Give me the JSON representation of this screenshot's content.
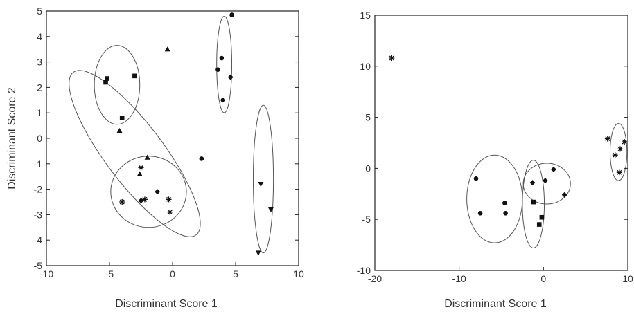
{
  "chart_data": [
    {
      "type": "scatter",
      "xlabel": "Discriminant Score 1",
      "ylabel": "Discriminant Score 2",
      "xlim": [
        -10,
        10
      ],
      "ylim": [
        -5,
        5
      ],
      "xticks": [
        "-10",
        "-5",
        "0",
        "5",
        "10"
      ],
      "yticks": [
        "5",
        "4",
        "3",
        "2",
        "1",
        "0",
        "-1",
        "-2",
        "-3",
        "-4",
        "-5"
      ],
      "grid": false,
      "series": [
        {
          "marker": "square",
          "points": [
            [
              -5.3,
              2.2
            ],
            [
              -5.2,
              2.35
            ],
            [
              -3.0,
              2.45
            ],
            [
              -4.0,
              0.8
            ]
          ]
        },
        {
          "marker": "circle",
          "points": [
            [
              4.7,
              4.85
            ],
            [
              3.9,
              3.15
            ],
            [
              3.6,
              2.7
            ],
            [
              4.0,
              1.5
            ],
            [
              2.3,
              -0.8
            ]
          ]
        },
        {
          "marker": "triangle",
          "points": [
            [
              -4.2,
              0.3
            ],
            [
              -2.0,
              -0.75
            ],
            [
              -2.6,
              -1.4
            ],
            [
              -0.4,
              3.5
            ]
          ]
        },
        {
          "marker": "diamond",
          "points": [
            [
              4.6,
              2.4
            ],
            [
              -1.2,
              -2.1
            ],
            [
              -2.5,
              -2.45
            ]
          ]
        },
        {
          "marker": "star",
          "points": [
            [
              -4.0,
              -2.5
            ],
            [
              -2.2,
              -2.4
            ],
            [
              -0.3,
              -2.4
            ],
            [
              -2.5,
              -1.15
            ],
            [
              -0.2,
              -2.9
            ]
          ]
        },
        {
          "marker": "inverted-triangle",
          "points": [
            [
              7.0,
              -1.8
            ],
            [
              7.8,
              -2.8
            ],
            [
              6.8,
              -4.5
            ]
          ]
        }
      ],
      "ellipses": [
        {
          "cx": -4.4,
          "cy": 2.1,
          "rx": 1.8,
          "ry": 1.55,
          "angle": 0
        },
        {
          "cx": -3.0,
          "cy": -0.6,
          "rx": 2.3,
          "ry": 4.0,
          "angle": 37
        },
        {
          "cx": -1.9,
          "cy": -2.1,
          "rx": 3.0,
          "ry": 1.4,
          "angle": 0
        },
        {
          "cx": 4.1,
          "cy": 2.9,
          "rx": 0.6,
          "ry": 1.9,
          "angle": 0
        },
        {
          "cx": 7.2,
          "cy": -1.6,
          "rx": 0.8,
          "ry": 2.9,
          "angle": 0
        }
      ]
    },
    {
      "type": "scatter",
      "xlabel": "Discriminant Score 1",
      "ylabel": "",
      "xlim": [
        -20,
        10
      ],
      "ylim": [
        -10,
        15
      ],
      "xticks": [
        "-20",
        "-10",
        "0",
        "10"
      ],
      "yticks": [
        "15",
        "10",
        "5",
        "0",
        "-5",
        "-10"
      ],
      "grid": false,
      "series": [
        {
          "marker": "circle",
          "points": [
            [
              -8.0,
              -1.0
            ],
            [
              -7.5,
              -4.4
            ],
            [
              -4.6,
              -3.4
            ],
            [
              -4.5,
              -4.4
            ]
          ]
        },
        {
          "marker": "square",
          "points": [
            [
              -1.2,
              -3.3
            ],
            [
              -0.2,
              -4.8
            ],
            [
              -0.5,
              -5.5
            ]
          ]
        },
        {
          "marker": "diamond",
          "points": [
            [
              1.2,
              -0.1
            ],
            [
              2.5,
              -2.6
            ],
            [
              -1.3,
              -1.4
            ],
            [
              0.2,
              -1.2
            ]
          ]
        },
        {
          "marker": "star",
          "points": [
            [
              -18.0,
              10.8
            ],
            [
              7.6,
              2.9
            ],
            [
              8.5,
              1.3
            ],
            [
              9.1,
              1.9
            ],
            [
              9.6,
              2.6
            ],
            [
              9.0,
              -0.4
            ]
          ]
        }
      ],
      "ellipses": [
        {
          "cx": -5.8,
          "cy": -3.0,
          "rx": 3.3,
          "ry": 4.3,
          "angle": 0
        },
        {
          "cx": -1.2,
          "cy": -3.5,
          "rx": 1.3,
          "ry": 4.3,
          "angle": 0
        },
        {
          "cx": 0.4,
          "cy": -1.5,
          "rx": 2.8,
          "ry": 2.0,
          "angle": 0
        },
        {
          "cx": 8.9,
          "cy": 1.6,
          "rx": 1.0,
          "ry": 2.8,
          "angle": 0
        }
      ]
    }
  ]
}
